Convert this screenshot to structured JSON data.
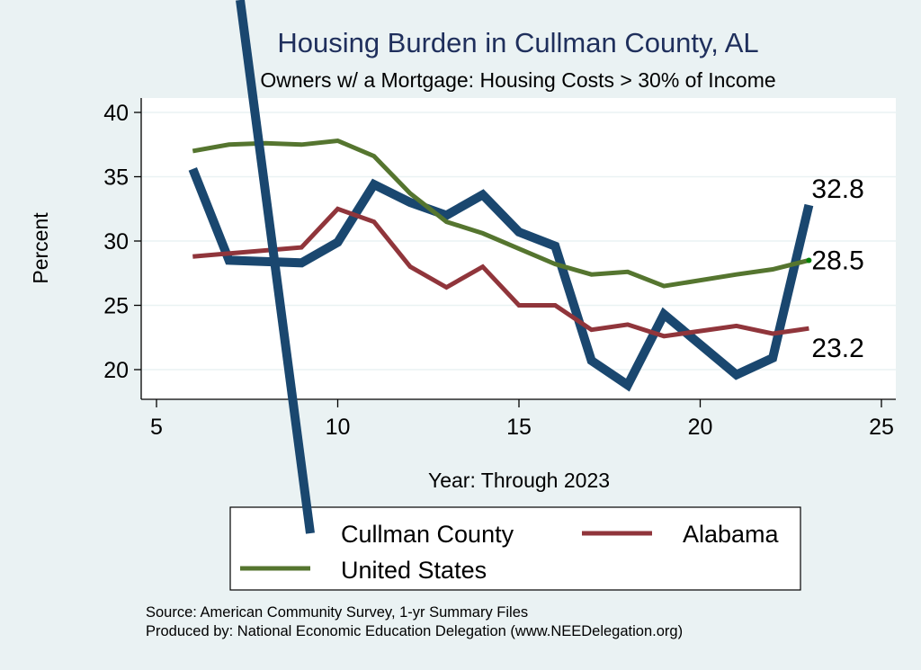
{
  "chart_data": {
    "type": "line",
    "title": "Housing Burden in Cullman County, AL",
    "subtitle": "Owners w/ a Mortgage: Housing Costs > 30% of Income",
    "xlabel": "Year: Through 2023",
    "ylabel": "Percent",
    "xlim": [
      5,
      25
    ],
    "ylim": [
      18,
      41
    ],
    "xticks": [
      5,
      10,
      15,
      20,
      25
    ],
    "yticks": [
      20,
      25,
      30,
      35,
      40
    ],
    "grid": true,
    "legend_position": "bottom",
    "series": [
      {
        "name": "Cullman County",
        "color": "#1A476F",
        "x": [
          6,
          7,
          9,
          10,
          11,
          12,
          13,
          14,
          15,
          16,
          17,
          18,
          19,
          21,
          22,
          23
        ],
        "values": [
          35.6,
          28.5,
          28.3,
          29.9,
          34.4,
          33.0,
          32.0,
          33.6,
          30.7,
          29.6,
          20.7,
          18.8,
          24.3,
          19.6,
          20.9,
          32.8
        ],
        "end_label": "32.8"
      },
      {
        "name": "Alabama",
        "color": "#90353B",
        "x": [
          6,
          9,
          10,
          11,
          12,
          13,
          14,
          15,
          16,
          17,
          18,
          19,
          21,
          22,
          23
        ],
        "values": [
          28.8,
          29.5,
          32.5,
          31.5,
          28.0,
          26.4,
          28.0,
          25.0,
          25.0,
          23.1,
          23.5,
          22.6,
          23.4,
          22.8,
          23.2
        ],
        "end_label": "23.2"
      },
      {
        "name": "United States",
        "color": "#55752F",
        "x": [
          6,
          7,
          8,
          9,
          10,
          11,
          12,
          13,
          14,
          15,
          16,
          17,
          18,
          19,
          21,
          22,
          23
        ],
        "values": [
          37.0,
          37.5,
          37.6,
          37.5,
          37.8,
          36.6,
          33.7,
          31.5,
          30.6,
          29.4,
          28.2,
          27.4,
          27.6,
          26.5,
          27.4,
          27.8,
          28.5
        ],
        "end_label": "28.5",
        "end_marker_color": "#008000"
      }
    ],
    "notes": [
      "Source: American Community Survey, 1-yr Summary Files",
      "Produced by: National Economic Education Delegation (www.NEEDelegation.org)"
    ]
  }
}
